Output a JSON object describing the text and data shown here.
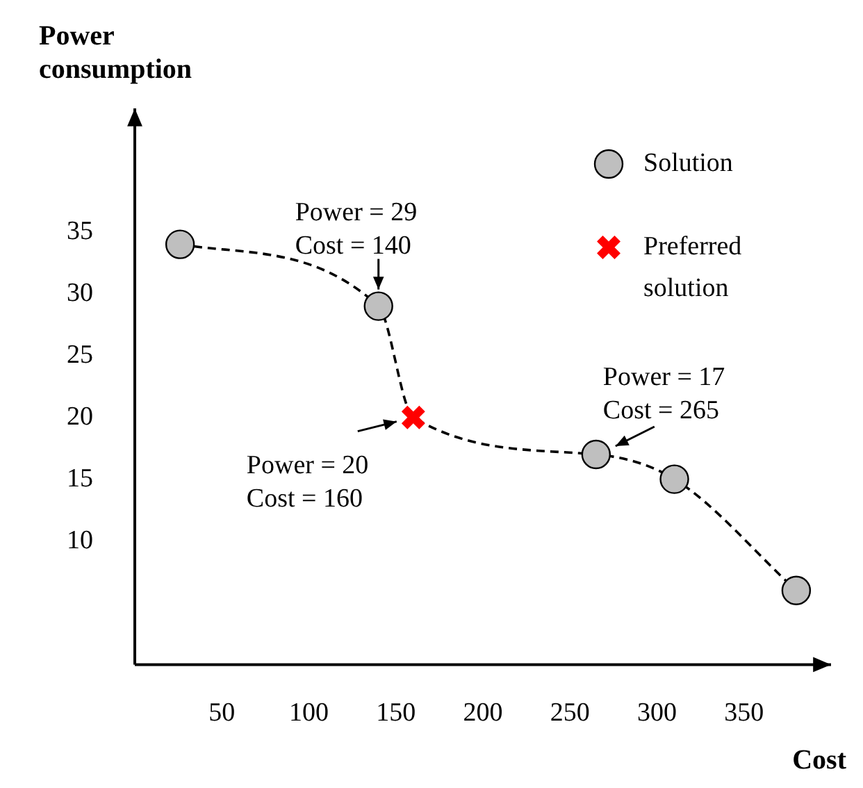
{
  "chart_data": {
    "type": "scatter",
    "xlabel": "Cost",
    "ylabel": "Power consumption",
    "xlim": [
      0,
      400
    ],
    "ylim": [
      0,
      45
    ],
    "xticks": [
      50,
      100,
      150,
      200,
      250,
      300,
      350
    ],
    "yticks": [
      10,
      15,
      20,
      25,
      30,
      35
    ],
    "grid": false,
    "legend": "top right",
    "series": [
      {
        "type": "line",
        "x": [
          26,
          140,
          160,
          265,
          310,
          380
        ],
        "values": [
          34,
          29,
          20,
          17,
          15,
          6
        ],
        "color": "#000000",
        "line_style": "dashed",
        "marker": "none"
      },
      {
        "type": "scatter",
        "name": "Solution",
        "x": [
          26,
          140,
          265,
          310,
          380
        ],
        "values": [
          34,
          29,
          17,
          15,
          6
        ],
        "color": "#bfbfbf",
        "marker": "circle"
      },
      {
        "type": "scatter",
        "name": "Preferred solution",
        "x": [
          160
        ],
        "values": [
          20
        ],
        "color": "#ff0000",
        "marker": "cross"
      }
    ],
    "annotations": [
      {
        "text": "Power = 29\nCost = 140",
        "x": 140,
        "y": 29
      },
      {
        "text": "Power = 20\nCost = 160",
        "x": 160,
        "y": 20
      },
      {
        "text": "Power = 17\nCost = 265",
        "x": 265,
        "y": 17
      }
    ]
  }
}
